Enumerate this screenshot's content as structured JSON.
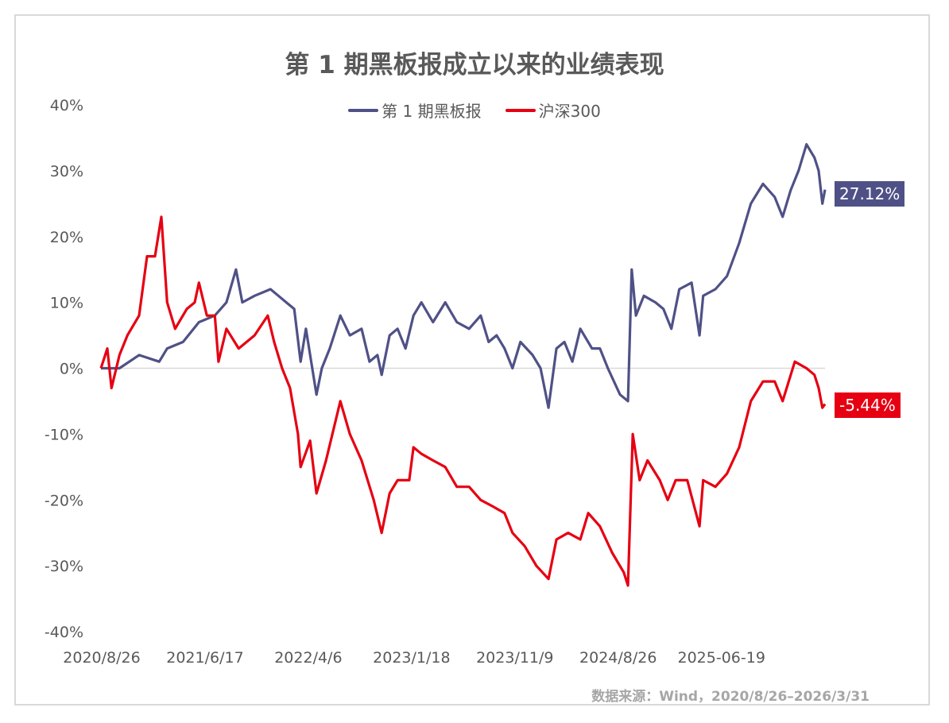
{
  "chart_data": {
    "type": "line",
    "title": "第 1 期黑板报成立以来的业绩表现",
    "xlabel": "",
    "ylabel": "",
    "x_unit": "trading day index (approx.)",
    "xlim": [
      0,
      1367
    ],
    "ylim": [
      -40,
      40
    ],
    "yticks": [
      40,
      30,
      20,
      10,
      0,
      -10,
      -20,
      -30,
      -40
    ],
    "ytick_labels": [
      "40%",
      "30%",
      "20%",
      "10%",
      "0%",
      "-10%",
      "-20%",
      "-30%",
      "-40%"
    ],
    "xticks": [
      0,
      195,
      390,
      585,
      780,
      975,
      1170
    ],
    "xtick_labels": [
      "2020/8/26",
      "2021/6/17",
      "2022/4/6",
      "2023/1/18",
      "2023/11/9",
      "2024/8/26",
      "2025-06-19"
    ],
    "legend_position": "top-center",
    "grid": false,
    "series": [
      {
        "name": "第 1 期黑板报",
        "color": "#4f5186",
        "end_label": "27.12%",
        "points": [
          [
            0,
            0
          ],
          [
            35,
            0
          ],
          [
            72,
            2
          ],
          [
            110,
            1
          ],
          [
            125,
            3
          ],
          [
            155,
            4
          ],
          [
            185,
            7
          ],
          [
            215,
            8
          ],
          [
            237,
            10
          ],
          [
            255,
            15
          ],
          [
            267,
            10
          ],
          [
            290,
            11
          ],
          [
            320,
            12
          ],
          [
            335,
            11
          ],
          [
            350,
            10
          ],
          [
            365,
            9
          ],
          [
            377,
            1
          ],
          [
            387,
            6
          ],
          [
            407,
            -4
          ],
          [
            417,
            0
          ],
          [
            432,
            3
          ],
          [
            452,
            8
          ],
          [
            470,
            5
          ],
          [
            492,
            6
          ],
          [
            507,
            1
          ],
          [
            522,
            2
          ],
          [
            530,
            -1
          ],
          [
            545,
            5
          ],
          [
            560,
            6
          ],
          [
            575,
            3
          ],
          [
            590,
            8
          ],
          [
            605,
            10
          ],
          [
            627,
            7
          ],
          [
            650,
            10
          ],
          [
            672,
            7
          ],
          [
            695,
            6
          ],
          [
            717,
            8
          ],
          [
            732,
            4
          ],
          [
            747,
            5
          ],
          [
            762,
            3
          ],
          [
            777,
            0
          ],
          [
            792,
            4
          ],
          [
            815,
            2
          ],
          [
            830,
            0
          ],
          [
            845,
            -6
          ],
          [
            860,
            3
          ],
          [
            875,
            4
          ],
          [
            890,
            1
          ],
          [
            905,
            6
          ],
          [
            927,
            3
          ],
          [
            942,
            3
          ],
          [
            957,
            0
          ],
          [
            980,
            -4
          ],
          [
            995,
            -5
          ],
          [
            1002,
            15
          ],
          [
            1010,
            8
          ],
          [
            1025,
            11
          ],
          [
            1047,
            10
          ],
          [
            1062,
            9
          ],
          [
            1077,
            6
          ],
          [
            1092,
            12
          ],
          [
            1115,
            13
          ],
          [
            1130,
            5
          ],
          [
            1137,
            11
          ],
          [
            1160,
            12
          ],
          [
            1182,
            14
          ],
          [
            1205,
            19
          ],
          [
            1227,
            25
          ],
          [
            1250,
            28
          ],
          [
            1272,
            26
          ],
          [
            1287,
            23
          ],
          [
            1302,
            27
          ],
          [
            1317,
            30
          ],
          [
            1332,
            34
          ],
          [
            1347,
            32
          ],
          [
            1355,
            30
          ],
          [
            1362,
            25
          ],
          [
            1367,
            27.12
          ]
        ]
      },
      {
        "name": "沪深300",
        "color": "#e60012",
        "end_label": "-5.44%",
        "points": [
          [
            0,
            0
          ],
          [
            12,
            3
          ],
          [
            20,
            -3
          ],
          [
            35,
            2
          ],
          [
            50,
            5
          ],
          [
            72,
            8
          ],
          [
            87,
            17
          ],
          [
            102,
            17
          ],
          [
            114,
            23
          ],
          [
            125,
            10
          ],
          [
            140,
            6
          ],
          [
            162,
            9
          ],
          [
            177,
            10
          ],
          [
            185,
            13
          ],
          [
            200,
            8
          ],
          [
            215,
            8
          ],
          [
            222,
            1
          ],
          [
            237,
            6
          ],
          [
            260,
            3
          ],
          [
            290,
            5
          ],
          [
            315,
            8
          ],
          [
            327,
            4
          ],
          [
            342,
            0
          ],
          [
            357,
            -3
          ],
          [
            372,
            -10
          ],
          [
            377,
            -15
          ],
          [
            395,
            -11
          ],
          [
            407,
            -19
          ],
          [
            425,
            -14
          ],
          [
            452,
            -5
          ],
          [
            470,
            -10
          ],
          [
            492,
            -14
          ],
          [
            515,
            -20
          ],
          [
            530,
            -25
          ],
          [
            545,
            -19
          ],
          [
            560,
            -17
          ],
          [
            582,
            -17
          ],
          [
            590,
            -12
          ],
          [
            605,
            -13
          ],
          [
            627,
            -14
          ],
          [
            650,
            -15
          ],
          [
            672,
            -18
          ],
          [
            695,
            -18
          ],
          [
            717,
            -20
          ],
          [
            740,
            -21
          ],
          [
            762,
            -22
          ],
          [
            777,
            -25
          ],
          [
            800,
            -27
          ],
          [
            822,
            -30
          ],
          [
            845,
            -32
          ],
          [
            860,
            -26
          ],
          [
            882,
            -25
          ],
          [
            905,
            -26
          ],
          [
            920,
            -22
          ],
          [
            942,
            -24
          ],
          [
            965,
            -28
          ],
          [
            987,
            -31
          ],
          [
            995,
            -33
          ],
          [
            1004,
            -10
          ],
          [
            1017,
            -17
          ],
          [
            1032,
            -14
          ],
          [
            1055,
            -17
          ],
          [
            1070,
            -20
          ],
          [
            1085,
            -17
          ],
          [
            1107,
            -17
          ],
          [
            1130,
            -24
          ],
          [
            1137,
            -17
          ],
          [
            1160,
            -18
          ],
          [
            1182,
            -16
          ],
          [
            1205,
            -12
          ],
          [
            1227,
            -5
          ],
          [
            1250,
            -2
          ],
          [
            1272,
            -2
          ],
          [
            1287,
            -5
          ],
          [
            1310,
            1
          ],
          [
            1332,
            0
          ],
          [
            1347,
            -1
          ],
          [
            1355,
            -3
          ],
          [
            1362,
            -6
          ],
          [
            1367,
            -5.44
          ]
        ]
      }
    ],
    "source": "数据来源：Wind，2020/8/26–2026/3/31"
  }
}
